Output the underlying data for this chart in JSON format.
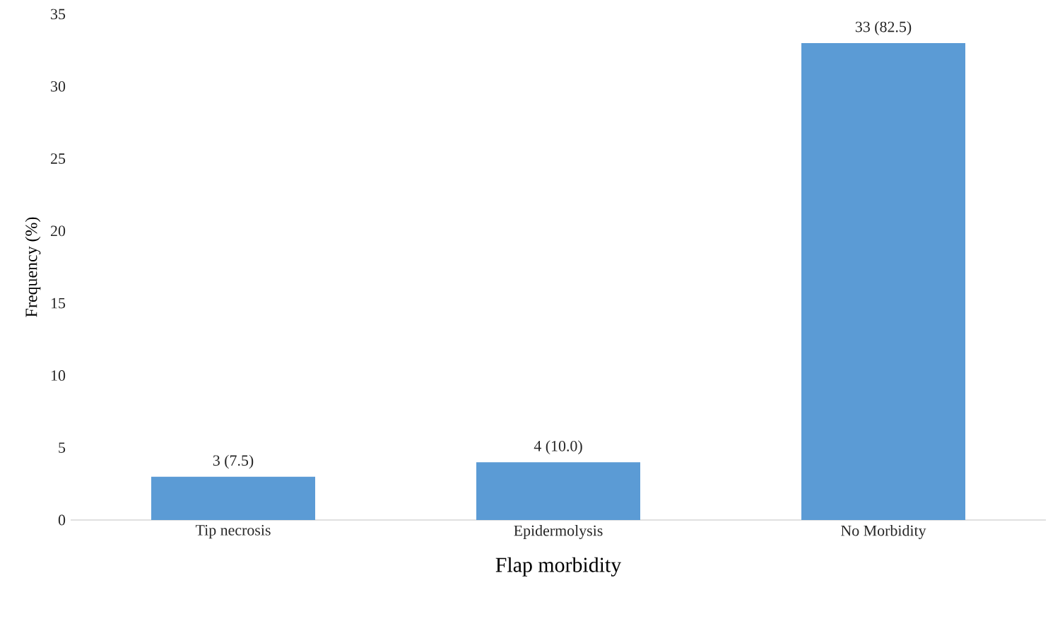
{
  "chart_data": {
    "type": "bar",
    "xlabel": "Flap morbidity",
    "ylabel": "Frequency (%)",
    "categories": [
      "Tip necrosis",
      "Epidermolysis",
      "No Morbidity"
    ],
    "values": [
      3,
      4,
      33
    ],
    "value_labels": [
      "3 (7.5)",
      "4 (10.0)",
      "33 (82.5)"
    ],
    "color": "#5b9bd5",
    "ylim": [
      0,
      35
    ],
    "yticks": [
      0,
      5,
      10,
      15,
      20,
      25,
      30,
      35
    ],
    "grid": false
  }
}
